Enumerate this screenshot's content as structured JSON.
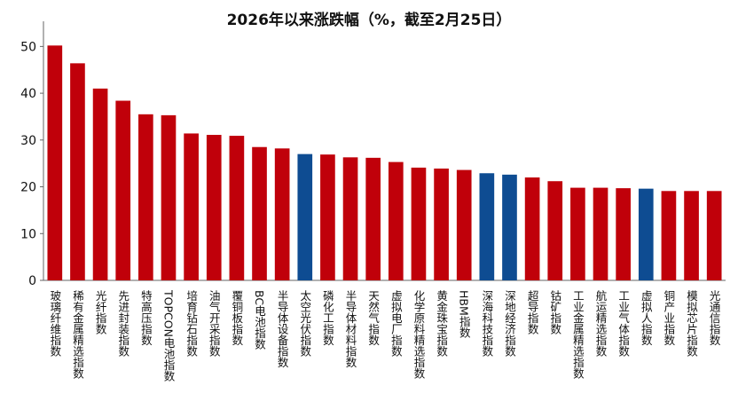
{
  "chart_data": {
    "type": "bar",
    "title": "2026年以来涨跌幅（%，截至2月25日）",
    "xlabel": "",
    "ylabel": "",
    "ylim": [
      0,
      55
    ],
    "yticks": [
      0,
      10,
      20,
      30,
      40,
      50
    ],
    "grid": false,
    "legend": "none",
    "colors": {
      "default": "#C0000A",
      "highlight": "#0E4C92",
      "axis": "#666666",
      "text": "#111111"
    },
    "categories": [
      "玻璃纤维指数",
      "稀有金属精选指数",
      "光纤指数",
      "先进封装指数",
      "特高压指数",
      "TOPCON电池指数",
      "培育钻石指数",
      "油气开采指数",
      "覆铜板指数",
      "BC电池指数",
      "半导体设备指数",
      "太空光伏指数",
      "磷化工指数",
      "半导体材料指数",
      "天然气指数",
      "虚拟电厂指数",
      "化学原料精选指数",
      "黄金珠宝指数",
      "HBM指数",
      "深海科技指数",
      "深地经济指数",
      "超导指数",
      "钴矿指数",
      "工业金属精选指数",
      "航运精选指数",
      "工业气体指数",
      "虚拟人指数",
      "铜产业指数",
      "模拟芯片指数",
      "光通信指数"
    ],
    "values": [
      50.2,
      46.4,
      41.0,
      38.4,
      35.5,
      35.3,
      31.4,
      31.1,
      30.9,
      28.5,
      28.2,
      27.0,
      26.9,
      26.3,
      26.2,
      25.3,
      24.1,
      23.9,
      23.6,
      22.9,
      22.6,
      22.0,
      21.2,
      19.8,
      19.8,
      19.7,
      19.6,
      19.1,
      19.1,
      19.1
    ],
    "highlight_categories": [
      "太空光伏指数",
      "深海科技指数",
      "深地经济指数",
      "虚拟人指数"
    ]
  }
}
